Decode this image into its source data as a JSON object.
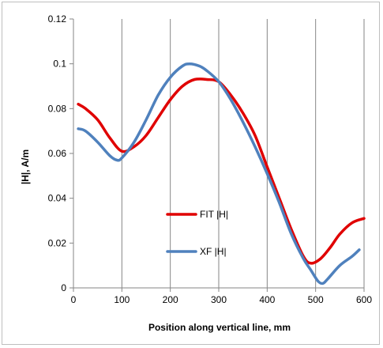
{
  "chart_data": {
    "type": "line",
    "title": "",
    "xlabel": "Position along vertical line, mm",
    "ylabel": "|H|, A/m",
    "xlim": [
      0,
      600
    ],
    "ylim": [
      0,
      0.12
    ],
    "xticks": [
      0,
      100,
      200,
      300,
      400,
      500,
      600
    ],
    "yticks": [
      0,
      0.02,
      0.04,
      0.06,
      0.08,
      0.1,
      0.12
    ],
    "xtick_labels": [
      "0",
      "100",
      "200",
      "300",
      "400",
      "500",
      "600"
    ],
    "ytick_labels": [
      "0",
      "0.02",
      "0.04",
      "0.06",
      "0.08",
      "0.1",
      "0.12"
    ],
    "grid": "vertical",
    "legend_position": "center-left",
    "series": [
      {
        "name": "FIT |H|",
        "color": "#e00000",
        "x": [
          10,
          25,
          50,
          75,
          100,
          125,
          150,
          175,
          200,
          225,
          250,
          275,
          300,
          325,
          350,
          375,
          400,
          425,
          450,
          475,
          490,
          510,
          530,
          550,
          575,
          600
        ],
        "y": [
          0.082,
          0.08,
          0.075,
          0.067,
          0.061,
          0.063,
          0.068,
          0.076,
          0.084,
          0.09,
          0.093,
          0.093,
          0.092,
          0.086,
          0.078,
          0.068,
          0.054,
          0.04,
          0.026,
          0.014,
          0.011,
          0.013,
          0.018,
          0.024,
          0.029,
          0.031
        ]
      },
      {
        "name": "XF |H|",
        "color": "#4f81bd",
        "x": [
          10,
          25,
          50,
          75,
          90,
          100,
          125,
          150,
          175,
          200,
          225,
          240,
          260,
          275,
          300,
          325,
          350,
          375,
          400,
          425,
          450,
          475,
          490,
          505,
          515,
          525,
          550,
          575,
          590
        ],
        "y": [
          0.071,
          0.07,
          0.065,
          0.059,
          0.057,
          0.058,
          0.065,
          0.075,
          0.086,
          0.094,
          0.099,
          0.1,
          0.099,
          0.097,
          0.092,
          0.084,
          0.074,
          0.063,
          0.051,
          0.038,
          0.024,
          0.013,
          0.008,
          0.003,
          0.002,
          0.004,
          0.01,
          0.014,
          0.017
        ]
      }
    ]
  }
}
